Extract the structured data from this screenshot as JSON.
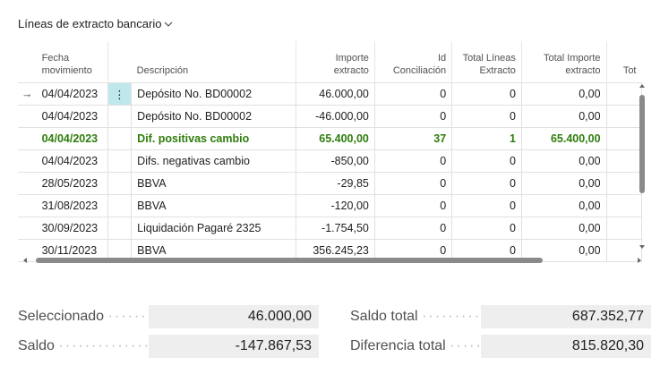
{
  "page": {
    "title": "Líneas de extracto bancario"
  },
  "columns": [
    {
      "label": ""
    },
    {
      "label": "Fecha\nmovimiento"
    },
    {
      "label": ""
    },
    {
      "label": "Descripción"
    },
    {
      "label": "Importe\nextracto"
    },
    {
      "label": "Id\nConciliación"
    },
    {
      "label": "Total Líneas\nExtracto"
    },
    {
      "label": "Total Importe\nextracto"
    },
    {
      "label": "Tot"
    }
  ],
  "rows": [
    {
      "indicator": "→",
      "date": "04/04/2023",
      "description": "Depósito No. BD00002",
      "amount": "46.000,00",
      "recon_id": "0",
      "total_lines": "0",
      "total_amount": "0,00",
      "highlight": false,
      "active": true
    },
    {
      "indicator": "",
      "date": "04/04/2023",
      "description": "Depósito No. BD00002",
      "amount": "-46.000,00",
      "recon_id": "0",
      "total_lines": "0",
      "total_amount": "0,00",
      "highlight": false,
      "active": false
    },
    {
      "indicator": "",
      "date": "04/04/2023",
      "description": "Dif. positivas cambio",
      "amount": "65.400,00",
      "recon_id": "37",
      "total_lines": "1",
      "total_amount": "65.400,00",
      "highlight": true,
      "active": false
    },
    {
      "indicator": "",
      "date": "04/04/2023",
      "description": "Difs. negativas cambio",
      "amount": "-850,00",
      "recon_id": "0",
      "total_lines": "0",
      "total_amount": "0,00",
      "highlight": false,
      "active": false
    },
    {
      "indicator": "",
      "date": "28/05/2023",
      "description": "BBVA",
      "amount": "-29,85",
      "recon_id": "0",
      "total_lines": "0",
      "total_amount": "0,00",
      "highlight": false,
      "active": false
    },
    {
      "indicator": "",
      "date": "31/08/2023",
      "description": "BBVA",
      "amount": "-120,00",
      "recon_id": "0",
      "total_lines": "0",
      "total_amount": "0,00",
      "highlight": false,
      "active": false
    },
    {
      "indicator": "",
      "date": "30/09/2023",
      "description": "Liquidación Pagaré 2325",
      "amount": "-1.754,50",
      "recon_id": "0",
      "total_lines": "0",
      "total_amount": "0,00",
      "highlight": false,
      "active": false
    },
    {
      "indicator": "",
      "date": "30/11/2023",
      "description": "BBVA",
      "amount": "356.245,23",
      "recon_id": "0",
      "total_lines": "0",
      "total_amount": "0,00",
      "highlight": false,
      "active": false
    }
  ],
  "row_menu_glyph": "⋮",
  "totals": {
    "selected_label": "Seleccionado",
    "selected_value": "46.000,00",
    "balance_label": "Saldo",
    "balance_value": "-147.867,53",
    "total_balance_label": "Saldo total",
    "total_balance_value": "687.352,77",
    "total_difference_label": "Diferencia total",
    "total_difference_value": "815.820,30"
  },
  "colors": {
    "highlight_text": "#2e7d0c",
    "active_cell": "#bfe8ec"
  },
  "icons": {
    "title_dropdown": "chevron-down-icon",
    "row_indicator": "arrow-right-icon",
    "row_menu": "more-vertical-icon"
  }
}
